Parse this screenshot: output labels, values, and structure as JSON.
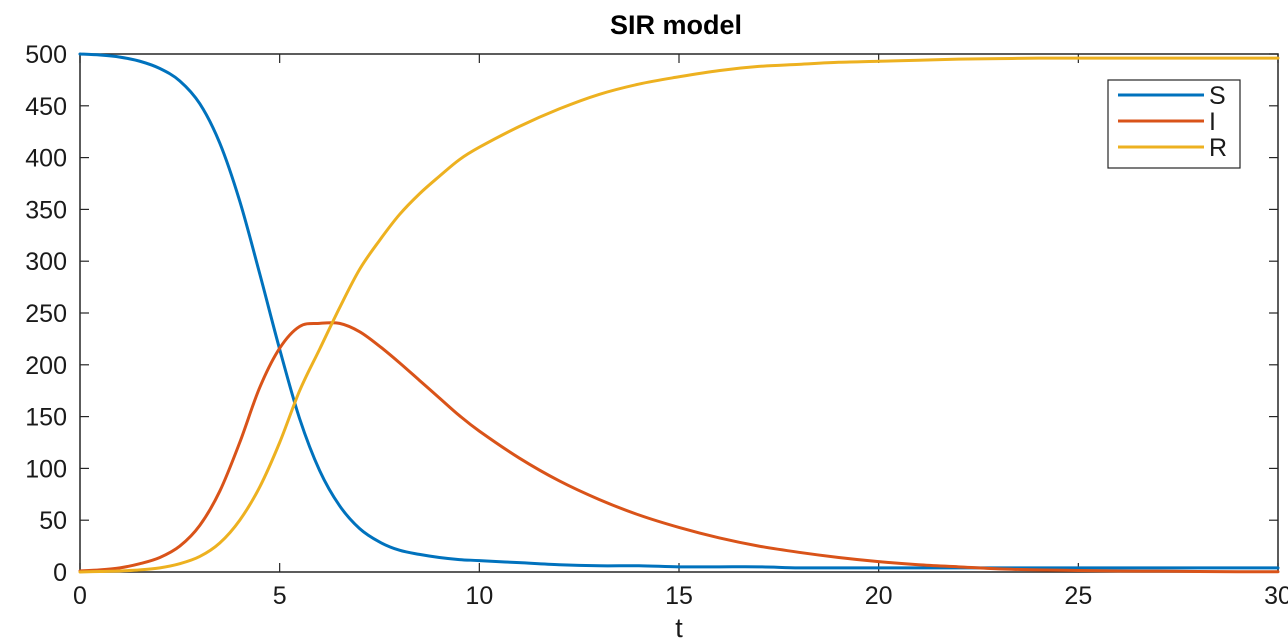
{
  "chart_data": {
    "type": "line",
    "title": "SIR model",
    "xlabel": "t",
    "ylabel": "",
    "xlim": [
      0,
      30
    ],
    "ylim": [
      0,
      500
    ],
    "xticks": [
      0,
      5,
      10,
      15,
      20,
      25,
      30
    ],
    "yticks": [
      0,
      50,
      100,
      150,
      200,
      250,
      300,
      350,
      400,
      450,
      500
    ],
    "grid": false,
    "legend_position": "top-right",
    "x": [
      0,
      0.5,
      1,
      1.5,
      2,
      2.5,
      3,
      3.5,
      4,
      4.5,
      5,
      5.5,
      6,
      6.5,
      7,
      7.5,
      8,
      8.5,
      9,
      9.5,
      10,
      11,
      12,
      13,
      14,
      15,
      16,
      17,
      18,
      19,
      20,
      21,
      22,
      23,
      24,
      25,
      26,
      27,
      28,
      29,
      30
    ],
    "series": [
      {
        "name": "S",
        "color": "#0072BD",
        "values": [
          500,
          499,
          497,
          493,
          486,
          474,
          452,
          414,
          358,
          288,
          215,
          148,
          98,
          64,
          42,
          29,
          21,
          17,
          14,
          12,
          11,
          9,
          7,
          6,
          6,
          5,
          5,
          5,
          4,
          4,
          4,
          4,
          4,
          4,
          4,
          4,
          4,
          4,
          4,
          4,
          4
        ]
      },
      {
        "name": "I",
        "color": "#D95319",
        "values": [
          1,
          2,
          4,
          8,
          14,
          25,
          45,
          78,
          125,
          178,
          216,
          237,
          240,
          240,
          232,
          218,
          202,
          185,
          168,
          151,
          136,
          110,
          88,
          70,
          55,
          43,
          33,
          25,
          19,
          14,
          10,
          7,
          5,
          3,
          2,
          1.5,
          1,
          0.8,
          0.5,
          0.3,
          0.2
        ]
      },
      {
        "name": "R",
        "color": "#EDB120",
        "values": [
          0,
          0.5,
          1,
          2,
          4,
          8,
          15,
          28,
          50,
          82,
          125,
          175,
          215,
          255,
          292,
          320,
          345,
          365,
          382,
          398,
          410,
          430,
          447,
          461,
          471,
          478,
          484,
          488,
          490,
          492,
          493,
          494,
          495,
          495.5,
          496,
          496,
          496,
          496,
          496,
          496,
          496
        ]
      }
    ]
  }
}
